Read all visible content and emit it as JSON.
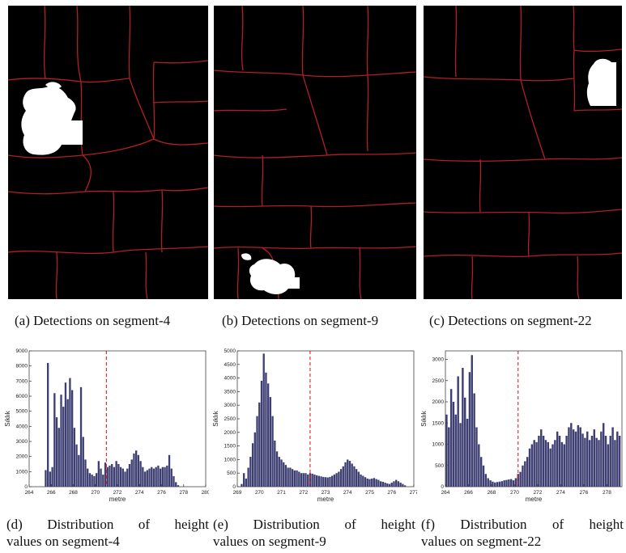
{
  "segments": [
    {
      "caption": "(a) Detections on segment-4"
    },
    {
      "caption": "(b) Detections on segment-9"
    },
    {
      "caption": "(c) Detections on segment-22"
    }
  ],
  "histogram_captions": [
    {
      "line1_parts": [
        "(d)",
        "Distribution",
        "of",
        "height"
      ],
      "line2": "values on segment-4"
    },
    {
      "line1_parts": [
        "(e)",
        "Distribution",
        "of",
        "height"
      ],
      "line2": "values on segment-9"
    },
    {
      "line1_parts": [
        "(f)",
        "Distribution",
        "of",
        "height"
      ],
      "line2": "values on segment-22"
    }
  ],
  "chart_data": [
    {
      "type": "bar",
      "xlabel": "metre",
      "ylabel": "Sıklık",
      "xlim": [
        264,
        280
      ],
      "ylim": [
        0,
        9000
      ],
      "xticks": [
        264,
        266,
        268,
        270,
        272,
        274,
        276,
        278,
        280
      ],
      "yticks": [
        0,
        1000,
        2000,
        3000,
        4000,
        5000,
        6000,
        7000,
        8000,
        9000
      ],
      "threshold": 271.0,
      "bar_color": "#3d3f72",
      "threshold_color": "#e02020",
      "x": [
        265.5,
        265.7,
        265.9,
        266.1,
        266.3,
        266.5,
        266.7,
        266.9,
        267.1,
        267.3,
        267.5,
        267.7,
        267.9,
        268.1,
        268.3,
        268.5,
        268.7,
        268.9,
        269.1,
        269.3,
        269.5,
        269.7,
        269.9,
        270.1,
        270.3,
        270.5,
        270.7,
        270.9,
        271.1,
        271.3,
        271.5,
        271.7,
        271.9,
        272.1,
        272.3,
        272.5,
        272.7,
        272.9,
        273.1,
        273.3,
        273.5,
        273.7,
        273.9,
        274.1,
        274.3,
        274.5,
        274.7,
        274.9,
        275.1,
        275.3,
        275.5,
        275.7,
        275.9,
        276.1,
        276.3,
        276.5,
        276.7,
        276.9,
        277.1,
        277.3,
        277.5,
        277.7,
        277.9
      ],
      "values": [
        1100,
        8200,
        1000,
        1300,
        6200,
        4600,
        3900,
        6100,
        5300,
        6900,
        5800,
        7200,
        6400,
        3900,
        2800,
        2100,
        6600,
        3300,
        1800,
        1200,
        900,
        800,
        700,
        900,
        1700,
        1200,
        800,
        1600,
        1300,
        1400,
        1500,
        1300,
        1700,
        1500,
        1300,
        1200,
        1000,
        1200,
        1500,
        1800,
        2200,
        2400,
        2100,
        1700,
        1300,
        1000,
        1100,
        1200,
        1300,
        1200,
        1300,
        1400,
        1200,
        1300,
        1300,
        1400,
        2100,
        1200,
        700,
        300,
        100,
        0,
        0
      ]
    },
    {
      "type": "bar",
      "xlabel": "metre",
      "ylabel": "Sıklık",
      "xlim": [
        269,
        277
      ],
      "ylim": [
        0,
        5000
      ],
      "xticks": [
        269,
        270,
        271,
        272,
        273,
        274,
        275,
        276,
        277
      ],
      "yticks": [
        0,
        500,
        1000,
        1500,
        2000,
        2500,
        3000,
        3500,
        4000,
        4500,
        5000
      ],
      "threshold": 272.3,
      "bar_color": "#3d3f72",
      "threshold_color": "#e02020",
      "x": [
        269.2,
        269.3,
        269.4,
        269.5,
        269.6,
        269.7,
        269.8,
        269.9,
        270.0,
        270.1,
        270.2,
        270.3,
        270.4,
        270.5,
        270.6,
        270.7,
        270.8,
        270.9,
        271.0,
        271.1,
        271.2,
        271.3,
        271.4,
        271.5,
        271.6,
        271.7,
        271.8,
        271.9,
        272.0,
        272.1,
        272.2,
        272.3,
        272.4,
        272.5,
        272.6,
        272.7,
        272.8,
        272.9,
        273.0,
        273.1,
        273.2,
        273.3,
        273.4,
        273.5,
        273.6,
        273.7,
        273.8,
        273.9,
        274.0,
        274.1,
        274.2,
        274.3,
        274.4,
        274.5,
        274.6,
        274.7,
        274.8,
        274.9,
        275.0,
        275.1,
        275.2,
        275.3,
        275.4,
        275.5,
        275.6,
        275.7,
        275.8,
        275.9,
        276.0,
        276.1,
        276.2,
        276.3,
        276.4,
        276.5,
        276.6,
        276.7
      ],
      "values": [
        100,
        500,
        300,
        700,
        1100,
        1600,
        2000,
        2600,
        3100,
        3900,
        4900,
        4200,
        3800,
        3300,
        2600,
        1700,
        1300,
        1100,
        1000,
        900,
        800,
        700,
        700,
        650,
        600,
        600,
        550,
        500,
        500,
        500,
        450,
        500,
        480,
        450,
        420,
        400,
        380,
        360,
        350,
        340,
        360,
        400,
        450,
        500,
        550,
        650,
        750,
        900,
        1000,
        950,
        850,
        750,
        650,
        550,
        450,
        400,
        350,
        300,
        280,
        300,
        320,
        280,
        250,
        200,
        180,
        150,
        120,
        100,
        150,
        200,
        250,
        200,
        150,
        100,
        50,
        0
      ]
    },
    {
      "type": "bar",
      "xlabel": "metre",
      "ylabel": "Sıklık",
      "xlim": [
        264,
        279.3
      ],
      "ylim": [
        0,
        3200
      ],
      "xticks": [
        264,
        266,
        268,
        270,
        272,
        274,
        276,
        278
      ],
      "yticks": [
        0,
        500,
        1000,
        1500,
        2000,
        2500,
        3000
      ],
      "threshold": 270.3,
      "bar_color": "#3d3f72",
      "threshold_color": "#e02020",
      "x": [
        264.1,
        264.3,
        264.5,
        264.7,
        264.9,
        265.1,
        265.3,
        265.5,
        265.7,
        265.9,
        266.1,
        266.3,
        266.5,
        266.7,
        266.9,
        267.1,
        267.3,
        267.5,
        267.7,
        267.9,
        268.1,
        268.3,
        268.5,
        268.7,
        268.9,
        269.1,
        269.3,
        269.5,
        269.7,
        269.9,
        270.1,
        270.3,
        270.5,
        270.7,
        270.9,
        271.1,
        271.3,
        271.5,
        271.7,
        271.9,
        272.1,
        272.3,
        272.5,
        272.7,
        272.9,
        273.1,
        273.3,
        273.5,
        273.7,
        273.9,
        274.1,
        274.3,
        274.5,
        274.7,
        274.9,
        275.1,
        275.3,
        275.5,
        275.7,
        275.9,
        276.1,
        276.3,
        276.5,
        276.7,
        276.9,
        277.1,
        277.3,
        277.5,
        277.7,
        277.9,
        278.1,
        278.3,
        278.5,
        278.7,
        278.9,
        279.1
      ],
      "values": [
        1700,
        1400,
        2300,
        2000,
        1700,
        2600,
        1500,
        2800,
        2100,
        1600,
        2700,
        3100,
        2200,
        1400,
        1000,
        700,
        500,
        300,
        200,
        150,
        120,
        100,
        110,
        120,
        130,
        150,
        160,
        170,
        180,
        150,
        200,
        300,
        350,
        500,
        600,
        700,
        900,
        1000,
        1100,
        1050,
        1200,
        1350,
        1200,
        1100,
        1050,
        900,
        1000,
        1100,
        1300,
        1200,
        1050,
        1000,
        1200,
        1400,
        1500,
        1350,
        1300,
        1450,
        1400,
        1250,
        1150,
        1300,
        1100,
        1200,
        1350,
        1150,
        1100,
        1300,
        1500,
        1200,
        1000,
        1200,
        1400,
        1100,
        1300,
        1200
      ]
    }
  ]
}
